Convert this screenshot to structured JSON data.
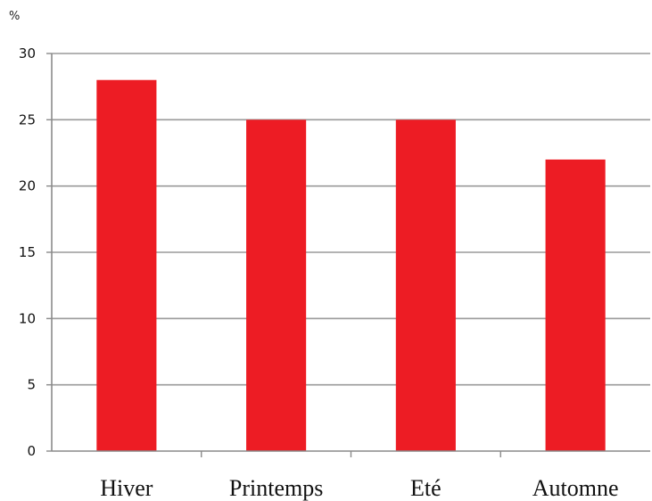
{
  "chart_data": {
    "type": "bar",
    "y_unit_label": "%",
    "categories": [
      "Hiver",
      "Printemps",
      "Eté",
      "Automne"
    ],
    "values": [
      28,
      25,
      25,
      22
    ],
    "ylim": [
      0,
      30
    ],
    "y_ticks": [
      0,
      5,
      10,
      15,
      20,
      25,
      30
    ],
    "grid": true,
    "legend": "none",
    "bar_color": "#ed1c24",
    "grid_color": "#9a9a9a"
  }
}
